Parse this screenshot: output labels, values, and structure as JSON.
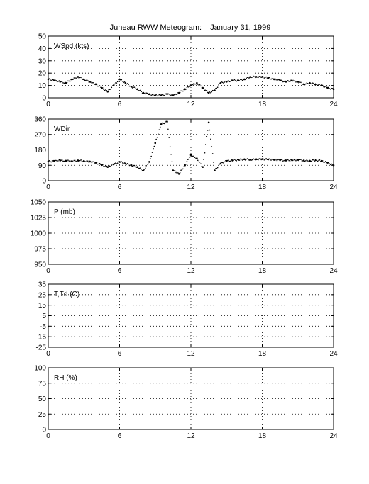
{
  "figure": {
    "title": "Juneau RWW Meteogram:    January 31, 1999"
  },
  "chart_data": [
    {
      "type": "scatter",
      "label": "WSpd (kts)",
      "xlim": [
        0,
        24
      ],
      "xticks": [
        "0",
        "6",
        "12",
        "18",
        "24"
      ],
      "ylim": [
        0,
        50
      ],
      "yticks": [
        "0",
        "10",
        "20",
        "30",
        "40",
        "50"
      ],
      "grid": true,
      "series": [
        {
          "x": [
            0,
            0.5,
            1,
            1.5,
            2,
            2.5,
            3,
            3.5,
            4,
            4.5,
            5,
            5.5,
            6,
            6.5,
            7,
            7.5,
            8,
            8.5,
            9,
            9.5,
            10,
            10.5,
            11,
            11.5,
            12,
            12.5,
            13,
            13.5,
            14,
            14.5,
            15,
            15.5,
            16,
            16.5,
            17,
            17.5,
            18,
            18.5,
            19,
            19.5,
            20,
            20.5,
            21,
            21.5,
            22,
            22.5,
            23,
            23.5,
            24
          ],
          "y": [
            15,
            14,
            13,
            12,
            15,
            17,
            15,
            13,
            11,
            8,
            5,
            10,
            15,
            12,
            9,
            7,
            4,
            3,
            2,
            2,
            3,
            2,
            4,
            7,
            10,
            12,
            8,
            4,
            6,
            12,
            13,
            14,
            14,
            15,
            17,
            17,
            17,
            16,
            15,
            14,
            13,
            14,
            13,
            11,
            12,
            11,
            10,
            8,
            7
          ]
        }
      ]
    },
    {
      "type": "scatter",
      "label": "WDir",
      "xlim": [
        0,
        24
      ],
      "xticks": [
        "0",
        "6",
        "12",
        "18",
        "24"
      ],
      "ylim": [
        0,
        360
      ],
      "yticks": [
        "0",
        "90",
        "180",
        "270",
        "360"
      ],
      "grid": true,
      "series": [
        {
          "x": [
            0,
            0.5,
            1,
            1.5,
            2,
            2.5,
            3,
            3.5,
            4,
            4.5,
            5,
            5.5,
            6,
            6.5,
            7,
            7.5,
            8,
            8.5,
            9,
            9.5,
            10,
            10.5,
            11,
            11.5,
            12,
            12.5,
            13,
            13.5,
            14,
            14.5,
            15,
            15.5,
            16,
            16.5,
            17,
            17.5,
            18,
            18.5,
            19,
            19.5,
            20,
            20.5,
            21,
            21.5,
            22,
            22.5,
            23,
            23.5,
            24
          ],
          "y": [
            112,
            115,
            118,
            116,
            114,
            118,
            115,
            112,
            105,
            92,
            80,
            95,
            110,
            100,
            90,
            80,
            60,
            110,
            220,
            330,
            345,
            60,
            40,
            90,
            150,
            130,
            80,
            340,
            60,
            100,
            115,
            118,
            122,
            125,
            123,
            125,
            126,
            124,
            122,
            120,
            118,
            120,
            122,
            118,
            116,
            120,
            115,
            105,
            90
          ]
        }
      ]
    },
    {
      "type": "scatter",
      "label": "P (mb)",
      "xlim": [
        0,
        24
      ],
      "xticks": [
        "0",
        "6",
        "12",
        "18",
        "24"
      ],
      "ylim": [
        950,
        1050
      ],
      "yticks": [
        "950",
        "975",
        "1000",
        "1025",
        "1050"
      ],
      "grid": true,
      "series": []
    },
    {
      "type": "scatter",
      "label": "T,Td (C)",
      "xlim": [
        0,
        24
      ],
      "xticks": [
        "0",
        "6",
        "12",
        "18",
        "24"
      ],
      "ylim": [
        -25,
        35
      ],
      "yticks": [
        "-25",
        "-15",
        "-5",
        "5",
        "15",
        "25",
        "35"
      ],
      "grid": true,
      "series": []
    },
    {
      "type": "scatter",
      "label": "RH (%)",
      "xlim": [
        0,
        24
      ],
      "xticks": [
        "0",
        "6",
        "12",
        "18",
        "24"
      ],
      "ylim": [
        0,
        100
      ],
      "yticks": [
        "0",
        "25",
        "50",
        "75",
        "100"
      ],
      "grid": true,
      "series": []
    }
  ]
}
